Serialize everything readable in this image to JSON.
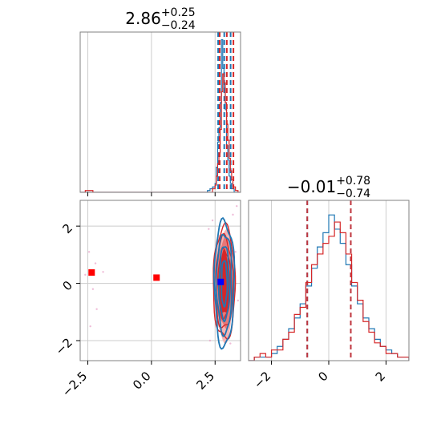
{
  "chart_data": [
    {
      "type": "histogram",
      "panel": "top-left",
      "title": {
        "main": "2.86",
        "upper": "+0.25",
        "lower": "−0.24"
      },
      "xlim": [
        -2.8,
        3.5
      ],
      "grid": true,
      "series": [
        {
          "color": "#1f77b4",
          "bins": [
            [
              -2.8,
              0
            ],
            [
              1.9,
              0
            ],
            [
              2.2,
              1
            ],
            [
              2.3,
              2
            ],
            [
              2.4,
              3
            ],
            [
              2.5,
              5
            ],
            [
              2.55,
              14
            ],
            [
              2.6,
              28
            ],
            [
              2.65,
              36
            ],
            [
              2.7,
              50
            ],
            [
              2.75,
              85
            ],
            [
              2.8,
              69
            ],
            [
              2.85,
              58
            ],
            [
              2.9,
              46
            ],
            [
              2.95,
              26
            ],
            [
              3.0,
              18
            ],
            [
              3.05,
              9
            ],
            [
              3.1,
              5
            ],
            [
              3.15,
              2
            ],
            [
              3.25,
              0
            ],
            [
              3.5,
              0
            ]
          ],
          "quantile_lines": [
            2.62,
            2.86,
            3.11
          ]
        },
        {
          "color": "#d62728",
          "bins": [
            [
              -2.8,
              0
            ],
            [
              -2.6,
              1
            ],
            [
              -2.3,
              0
            ],
            [
              1.9,
              0
            ],
            [
              2.4,
              2
            ],
            [
              2.5,
              4
            ],
            [
              2.55,
              9
            ],
            [
              2.6,
              16
            ],
            [
              2.65,
              22
            ],
            [
              2.7,
              35
            ],
            [
              2.75,
              56
            ],
            [
              2.8,
              66
            ],
            [
              2.85,
              61
            ],
            [
              2.9,
              50
            ],
            [
              2.95,
              38
            ],
            [
              3.0,
              29
            ],
            [
              3.05,
              19
            ],
            [
              3.1,
              12
            ],
            [
              3.15,
              7
            ],
            [
              3.2,
              3
            ],
            [
              3.3,
              1
            ],
            [
              3.4,
              0
            ],
            [
              3.5,
              0
            ]
          ],
          "quantile_lines": [
            2.68,
            2.96,
            3.22
          ]
        }
      ]
    },
    {
      "type": "histogram",
      "panel": "bottom-right",
      "title": {
        "main": "−0.01",
        "upper": "+0.78",
        "lower": "−0.74"
      },
      "xlim": [
        -2.8,
        2.8
      ],
      "xticks": [
        -2,
        0,
        2
      ],
      "xtick_labels": [
        "−2",
        "0",
        "2"
      ],
      "grid": true,
      "series": [
        {
          "color": "#1f77b4",
          "bins": [
            [
              -2.8,
              0
            ],
            [
              -2.6,
              1
            ],
            [
              -2.4,
              1
            ],
            [
              -2.2,
              1
            ],
            [
              -2.0,
              2
            ],
            [
              -1.8,
              4
            ],
            [
              -1.6,
              6
            ],
            [
              -1.4,
              9
            ],
            [
              -1.2,
              12
            ],
            [
              -1.0,
              16
            ],
            [
              -0.8,
              21
            ],
            [
              -0.6,
              26
            ],
            [
              -0.4,
              32
            ],
            [
              -0.2,
              36
            ],
            [
              0.0,
              41
            ],
            [
              0.2,
              37
            ],
            [
              0.4,
              33
            ],
            [
              0.6,
              27
            ],
            [
              0.8,
              21
            ],
            [
              1.0,
              16
            ],
            [
              1.2,
              12
            ],
            [
              1.4,
              9
            ],
            [
              1.6,
              6
            ],
            [
              1.8,
              4
            ],
            [
              2.0,
              3
            ],
            [
              2.2,
              2
            ],
            [
              2.4,
              1
            ],
            [
              2.6,
              1
            ],
            [
              2.8,
              0
            ]
          ],
          "quantile_lines": [
            -0.75,
            0.77
          ]
        },
        {
          "color": "#d62728",
          "bins": [
            [
              -2.8,
              0
            ],
            [
              -2.6,
              1
            ],
            [
              -2.4,
              2
            ],
            [
              -2.2,
              1
            ],
            [
              -2.0,
              3
            ],
            [
              -1.8,
              3
            ],
            [
              -1.6,
              6
            ],
            [
              -1.4,
              8
            ],
            [
              -1.2,
              13
            ],
            [
              -1.0,
              15
            ],
            [
              -0.8,
              22
            ],
            [
              -0.6,
              27
            ],
            [
              -0.4,
              30
            ],
            [
              -0.2,
              33
            ],
            [
              0.0,
              35
            ],
            [
              0.2,
              39
            ],
            [
              0.4,
              36
            ],
            [
              0.6,
              30
            ],
            [
              0.8,
              22
            ],
            [
              1.0,
              17
            ],
            [
              1.2,
              11
            ],
            [
              1.4,
              8
            ],
            [
              1.6,
              5
            ],
            [
              1.8,
              4
            ],
            [
              2.0,
              2
            ],
            [
              2.2,
              2
            ],
            [
              2.4,
              1
            ],
            [
              2.6,
              1
            ],
            [
              2.8,
              0
            ]
          ],
          "quantile_lines": [
            -0.75,
            0.77
          ]
        }
      ]
    },
    {
      "type": "scatter",
      "panel": "bottom-left",
      "xlim": [
        -2.8,
        3.5
      ],
      "ylim": [
        -2.7,
        2.9
      ],
      "xticks": [
        -2.5,
        0.0,
        2.5
      ],
      "xtick_labels": [
        "−2.5",
        "0.0",
        "2.5"
      ],
      "yticks": [
        -2,
        0,
        2
      ],
      "ytick_labels": [
        "−2",
        "0",
        "2"
      ],
      "grid": true,
      "contours": {
        "center": [
          2.86,
          0.0
        ],
        "red_fill_levels": [
          [
            0.42,
            1.95,
            "#f4b4b4"
          ],
          [
            0.32,
            1.55,
            "#e77878"
          ],
          [
            0.22,
            1.1,
            "#d62728"
          ]
        ],
        "red_lines": [
          [
            0.43,
            1.95
          ],
          [
            0.34,
            1.6
          ],
          [
            0.24,
            1.2
          ],
          [
            0.14,
            0.75
          ]
        ],
        "blue_lines": [
          [
            0.39,
            2.2
          ],
          [
            0.3,
            1.75
          ],
          [
            0.2,
            1.3
          ],
          [
            0.11,
            0.8
          ]
        ]
      },
      "markers": [
        {
          "x": -2.35,
          "y": 0.38,
          "color": "#ff0000"
        },
        {
          "x": 0.2,
          "y": 0.2,
          "color": "#ff0000"
        },
        {
          "x": 2.72,
          "y": 0.05,
          "color": "#0000ff"
        }
      ],
      "scatter_points": [
        [
          -2.45,
          1.1
        ],
        [
          -2.2,
          0.7
        ],
        [
          -2.3,
          -0.2
        ],
        [
          -2.15,
          -0.9
        ],
        [
          -2.6,
          0.3
        ],
        [
          -2.4,
          -1.5
        ],
        [
          -1.9,
          0.4
        ],
        [
          3.2,
          2.4
        ],
        [
          3.3,
          1.1
        ],
        [
          3.4,
          -0.6
        ],
        [
          3.1,
          -2.1
        ],
        [
          2.3,
          -2.0
        ],
        [
          2.25,
          1.9
        ],
        [
          3.35,
          2.7
        ],
        [
          2.4,
          2.2
        ]
      ]
    }
  ]
}
